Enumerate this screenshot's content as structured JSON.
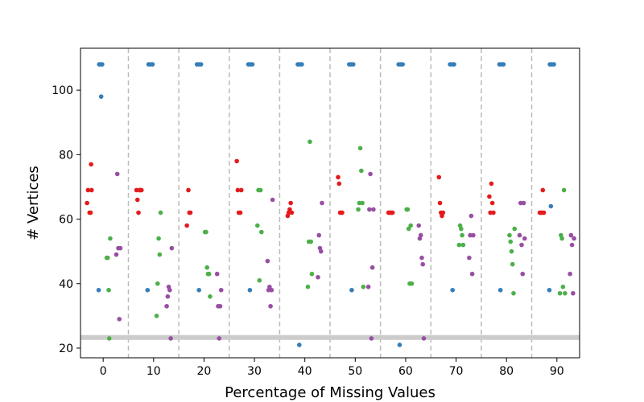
{
  "chart_data": {
    "type": "scatter",
    "xlabel": "Percentage of Missing Values",
    "ylabel": "# Vertices",
    "xlim": [
      -4.5,
      94.5
    ],
    "ylim": [
      17,
      113
    ],
    "xticks": [
      0,
      10,
      20,
      30,
      40,
      50,
      60,
      70,
      80,
      90
    ],
    "yticks": [
      20,
      40,
      60,
      80,
      100
    ],
    "group_separators": [
      5,
      15,
      25,
      35,
      45,
      55,
      65,
      75,
      85
    ],
    "reference_line_y": 23.3,
    "grid": false,
    "colors": {
      "blue": "#377eb8",
      "red": "#e41a1c",
      "green": "#4daf4a",
      "purple": "#984ea3",
      "separator": "#bbbbbb",
      "reference": "#cccccc"
    },
    "series": [
      {
        "color": "#377eb8",
        "points": [
          [
            -0.8,
            108
          ],
          [
            -0.5,
            108
          ],
          [
            -0.2,
            108
          ],
          [
            -0.4,
            98
          ],
          [
            -0.9,
            38
          ],
          [
            9.0,
            108
          ],
          [
            9.4,
            108
          ],
          [
            9.8,
            108
          ],
          [
            8.8,
            38
          ],
          [
            18.6,
            108
          ],
          [
            19.0,
            108
          ],
          [
            19.4,
            108
          ],
          [
            19.0,
            38
          ],
          [
            28.8,
            108
          ],
          [
            29.2,
            108
          ],
          [
            29.6,
            108
          ],
          [
            29.1,
            38
          ],
          [
            38.6,
            108
          ],
          [
            39.0,
            108
          ],
          [
            39.4,
            108
          ],
          [
            38.9,
            21
          ],
          [
            48.8,
            108
          ],
          [
            49.2,
            108
          ],
          [
            49.6,
            108
          ],
          [
            49.3,
            38
          ],
          [
            58.6,
            108
          ],
          [
            59.0,
            108
          ],
          [
            59.4,
            108
          ],
          [
            58.8,
            21
          ],
          [
            68.8,
            108
          ],
          [
            69.2,
            108
          ],
          [
            69.6,
            108
          ],
          [
            69.3,
            38
          ],
          [
            78.6,
            108
          ],
          [
            79.0,
            108
          ],
          [
            79.4,
            108
          ],
          [
            78.8,
            38
          ],
          [
            88.6,
            108
          ],
          [
            89.0,
            108
          ],
          [
            89.4,
            108
          ],
          [
            88.8,
            64
          ],
          [
            88.5,
            38
          ]
        ]
      },
      {
        "color": "#e41a1c",
        "points": [
          [
            -3.2,
            65
          ],
          [
            -3.0,
            69
          ],
          [
            -2.7,
            62
          ],
          [
            -2.5,
            62
          ],
          [
            -2.4,
            77
          ],
          [
            -2.3,
            69
          ],
          [
            6.6,
            69
          ],
          [
            6.8,
            66
          ],
          [
            7.0,
            62
          ],
          [
            7.2,
            69
          ],
          [
            7.4,
            69
          ],
          [
            7.6,
            69
          ],
          [
            16.6,
            58
          ],
          [
            16.9,
            69
          ],
          [
            17.1,
            62
          ],
          [
            17.3,
            62
          ],
          [
            26.5,
            78
          ],
          [
            26.7,
            69
          ],
          [
            26.9,
            62
          ],
          [
            27.2,
            62
          ],
          [
            27.4,
            69
          ],
          [
            36.6,
            61
          ],
          [
            36.8,
            62
          ],
          [
            37.0,
            63
          ],
          [
            37.2,
            65
          ],
          [
            37.4,
            62
          ],
          [
            46.6,
            73
          ],
          [
            46.8,
            71
          ],
          [
            47.0,
            62
          ],
          [
            47.2,
            62
          ],
          [
            47.4,
            62
          ],
          [
            56.6,
            62
          ],
          [
            56.8,
            62
          ],
          [
            57.0,
            62
          ],
          [
            57.2,
            62
          ],
          [
            57.4,
            62
          ],
          [
            66.6,
            73
          ],
          [
            66.8,
            65
          ],
          [
            67.0,
            62
          ],
          [
            67.2,
            61
          ],
          [
            67.4,
            62
          ],
          [
            76.6,
            67
          ],
          [
            76.8,
            62
          ],
          [
            77.0,
            71
          ],
          [
            77.2,
            65
          ],
          [
            77.4,
            62
          ],
          [
            86.6,
            62
          ],
          [
            86.8,
            62
          ],
          [
            87.0,
            62
          ],
          [
            87.2,
            69
          ],
          [
            87.4,
            62
          ]
        ]
      },
      {
        "color": "#4daf4a",
        "points": [
          [
            0.7,
            48
          ],
          [
            0.9,
            48
          ],
          [
            1.1,
            38
          ],
          [
            1.2,
            23
          ],
          [
            1.4,
            54
          ],
          [
            10.6,
            30
          ],
          [
            10.8,
            40
          ],
          [
            11.0,
            54
          ],
          [
            11.2,
            49
          ],
          [
            11.4,
            62
          ],
          [
            20.2,
            56
          ],
          [
            20.4,
            56
          ],
          [
            20.6,
            45
          ],
          [
            20.8,
            43
          ],
          [
            21.0,
            43
          ],
          [
            21.2,
            36
          ],
          [
            30.6,
            58
          ],
          [
            30.8,
            69
          ],
          [
            31.0,
            41
          ],
          [
            31.2,
            69
          ],
          [
            31.4,
            56
          ],
          [
            40.6,
            39
          ],
          [
            40.8,
            53
          ],
          [
            41.0,
            84
          ],
          [
            41.2,
            53
          ],
          [
            41.4,
            43
          ],
          [
            50.6,
            63
          ],
          [
            50.8,
            65
          ],
          [
            51.0,
            82
          ],
          [
            51.2,
            75
          ],
          [
            51.4,
            65
          ],
          [
            51.6,
            39
          ],
          [
            60.2,
            63
          ],
          [
            60.4,
            63
          ],
          [
            60.6,
            57
          ],
          [
            60.8,
            40
          ],
          [
            61.0,
            58
          ],
          [
            61.2,
            40
          ],
          [
            70.6,
            52
          ],
          [
            70.8,
            58
          ],
          [
            71.0,
            57
          ],
          [
            71.2,
            55
          ],
          [
            71.4,
            52
          ],
          [
            80.6,
            55
          ],
          [
            80.8,
            53
          ],
          [
            81.0,
            50
          ],
          [
            81.2,
            46
          ],
          [
            81.4,
            37
          ],
          [
            81.6,
            57
          ],
          [
            90.6,
            37
          ],
          [
            90.8,
            55
          ],
          [
            91.0,
            54
          ],
          [
            91.2,
            39
          ],
          [
            91.4,
            69
          ],
          [
            91.6,
            37
          ]
        ]
      },
      {
        "color": "#984ea3",
        "points": [
          [
            2.6,
            49
          ],
          [
            2.8,
            74
          ],
          [
            3.0,
            51
          ],
          [
            3.2,
            29
          ],
          [
            3.4,
            51
          ],
          [
            12.6,
            33
          ],
          [
            12.8,
            36
          ],
          [
            13.0,
            39
          ],
          [
            13.2,
            38
          ],
          [
            13.4,
            23
          ],
          [
            13.6,
            51
          ],
          [
            22.6,
            43
          ],
          [
            22.8,
            33
          ],
          [
            23.0,
            23
          ],
          [
            23.2,
            33
          ],
          [
            23.4,
            38
          ],
          [
            32.6,
            47
          ],
          [
            32.8,
            38
          ],
          [
            33.0,
            39
          ],
          [
            33.2,
            33
          ],
          [
            33.4,
            38
          ],
          [
            33.6,
            66
          ],
          [
            42.6,
            42
          ],
          [
            42.8,
            55
          ],
          [
            43.0,
            51
          ],
          [
            43.2,
            50
          ],
          [
            43.4,
            65
          ],
          [
            52.6,
            39
          ],
          [
            52.8,
            63
          ],
          [
            53.0,
            74
          ],
          [
            53.2,
            23
          ],
          [
            53.4,
            45
          ],
          [
            53.6,
            63
          ],
          [
            62.6,
            58
          ],
          [
            62.8,
            54
          ],
          [
            63.0,
            55
          ],
          [
            63.2,
            48
          ],
          [
            63.4,
            46
          ],
          [
            63.6,
            23
          ],
          [
            72.6,
            48
          ],
          [
            72.8,
            55
          ],
          [
            73.0,
            61
          ],
          [
            73.2,
            43
          ],
          [
            73.4,
            55
          ],
          [
            82.6,
            55
          ],
          [
            82.8,
            65
          ],
          [
            83.0,
            52
          ],
          [
            83.2,
            43
          ],
          [
            83.4,
            65
          ],
          [
            83.6,
            54
          ],
          [
            92.6,
            43
          ],
          [
            92.8,
            55
          ],
          [
            93.0,
            52
          ],
          [
            93.2,
            37
          ],
          [
            93.4,
            54
          ]
        ]
      }
    ]
  }
}
